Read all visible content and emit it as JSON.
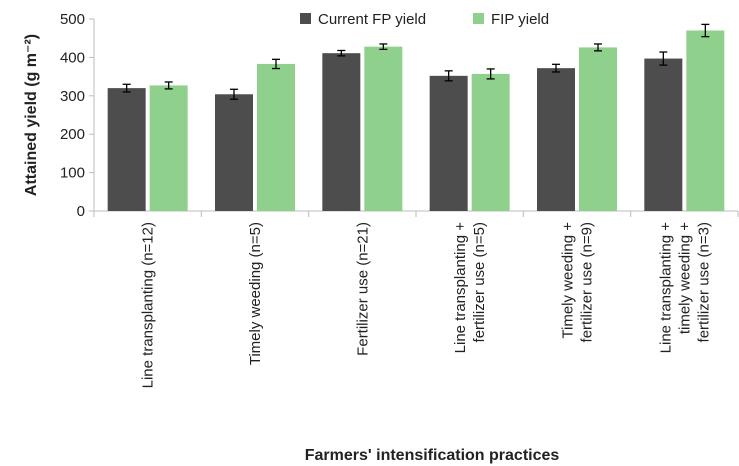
{
  "chart_data": {
    "type": "bar",
    "xlabel": "Farmers' intensification practices",
    "ylabel": "Attained yield (g m⁻²)",
    "ylim": [
      0,
      500
    ],
    "yticks": [
      0,
      100,
      200,
      300,
      400,
      500
    ],
    "grid": false,
    "legend_position": "top-center",
    "categories": [
      [
        "Line transplanting (n=12)"
      ],
      [
        "Timely weeding (n=5)"
      ],
      [
        "Fertilizer use (n=21)"
      ],
      [
        "Line transplanting +",
        "fertilizer use (n=5)"
      ],
      [
        "Timely weeding +",
        "fertilizer use (n=9)"
      ],
      [
        "Line transplanting +",
        "timely weeding +",
        "fertilizer use (n=3)"
      ]
    ],
    "series": [
      {
        "name": "Current FP yield",
        "color": "#4d4d4d",
        "values": [
          320,
          304,
          411,
          352,
          372,
          397
        ],
        "errors": [
          10,
          13,
          7,
          13,
          10,
          17
        ]
      },
      {
        "name": "FIP yield",
        "color": "#8fd18c",
        "values": [
          327,
          383,
          428,
          357,
          426,
          470
        ],
        "errors": [
          9,
          12,
          7,
          13,
          9,
          16
        ]
      }
    ]
  }
}
